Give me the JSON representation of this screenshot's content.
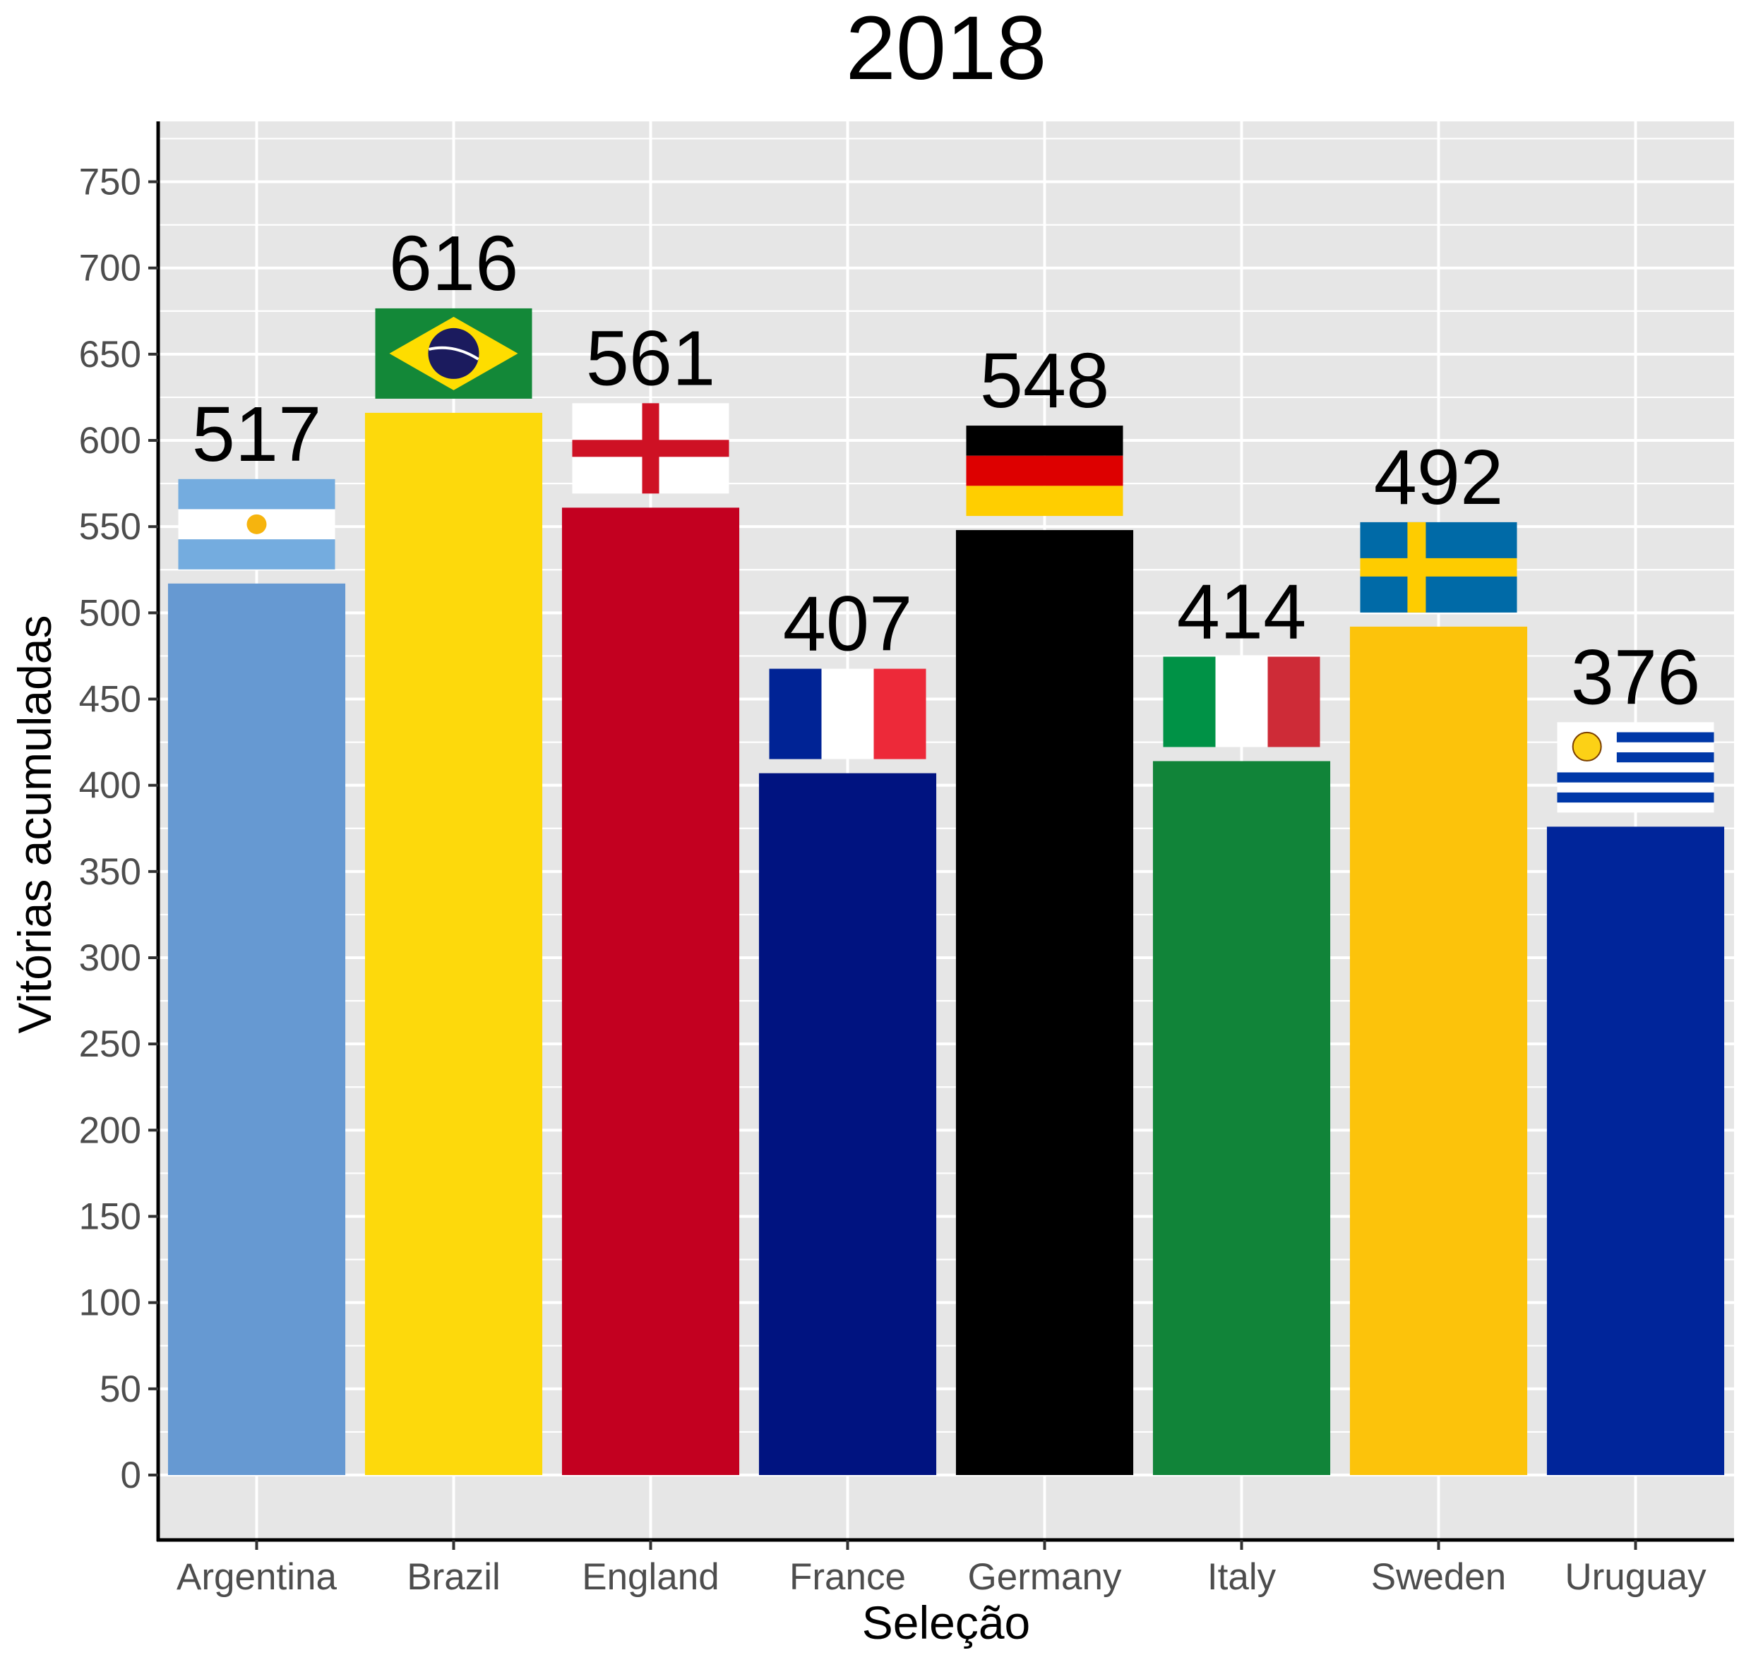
{
  "chart_data": {
    "type": "bar",
    "title": "2018",
    "xlabel": "Seleção",
    "ylabel": "Vitórias acumuladas",
    "categories": [
      "Argentina",
      "Brazil",
      "England",
      "France",
      "Germany",
      "Italy",
      "Sweden",
      "Uruguay"
    ],
    "values": [
      517,
      616,
      561,
      407,
      548,
      414,
      492,
      376
    ],
    "data_labels": [
      "517",
      "616",
      "561",
      "407",
      "548",
      "414",
      "492",
      "376"
    ],
    "bar_colors": [
      "#6699d2",
      "#fdd90c",
      "#c30020",
      "#001380",
      "#000000",
      "#118439",
      "#fcc30b",
      "#00259a"
    ],
    "flags": [
      "argentina-flag",
      "brazil-flag",
      "england-flag",
      "france-flag",
      "germany-flag",
      "italy-flag",
      "sweden-flag",
      "uruguay-flag"
    ],
    "ylim": [
      -35,
      785
    ],
    "yticks": [
      0,
      50,
      100,
      150,
      200,
      250,
      300,
      350,
      400,
      450,
      500,
      550,
      600,
      650,
      700,
      750
    ],
    "grid": true,
    "panel_background": "#e6e6e6"
  }
}
